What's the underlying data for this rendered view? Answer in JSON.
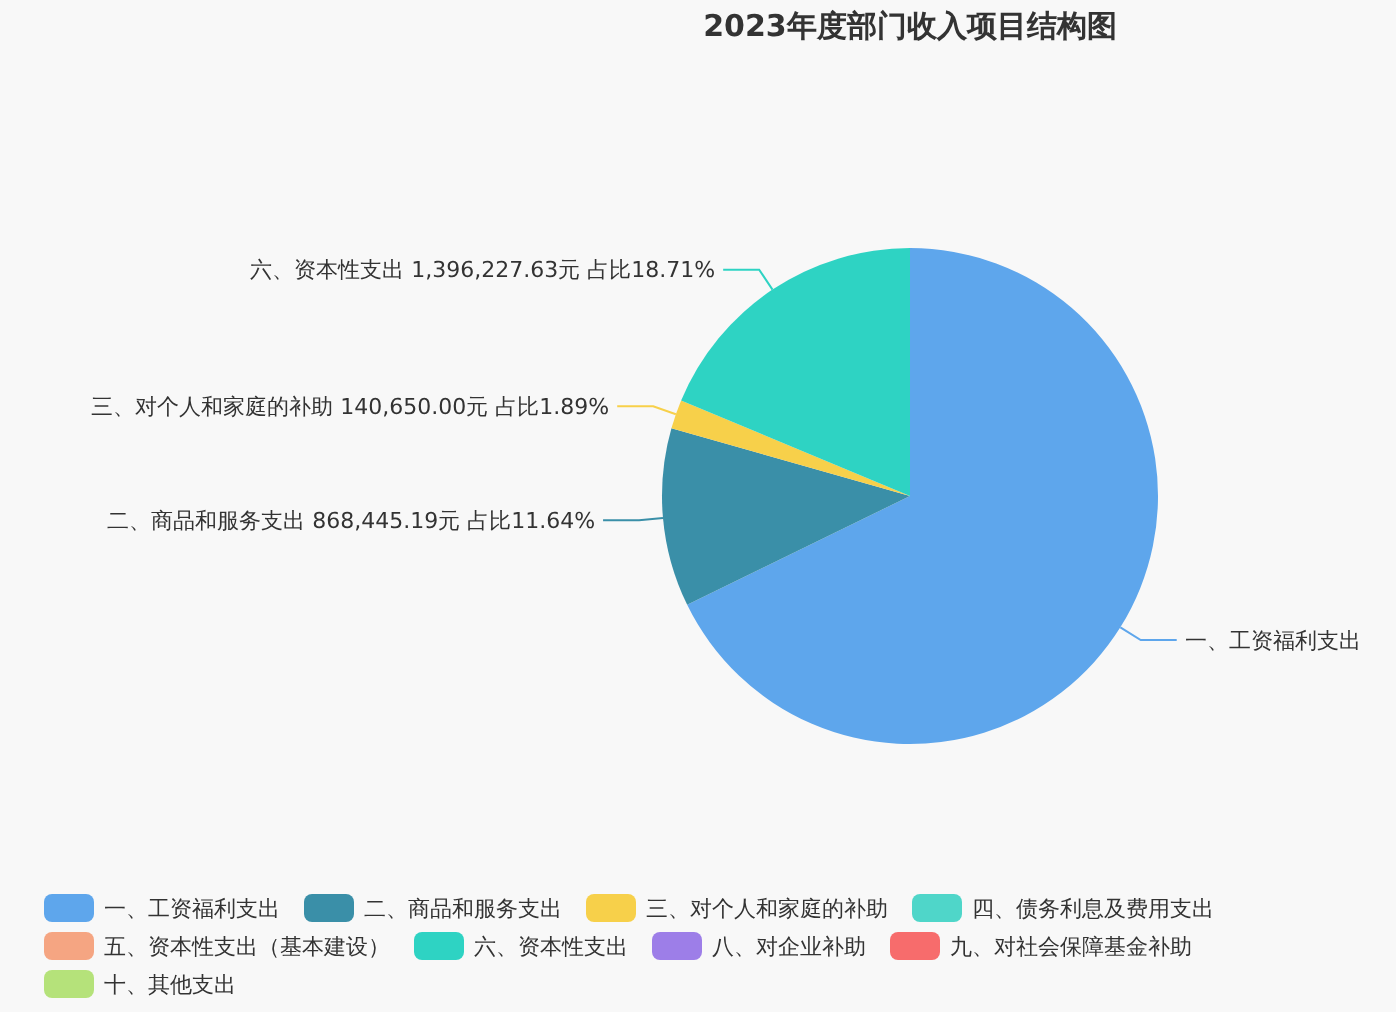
{
  "chart_data": {
    "type": "pie",
    "title": "2023年度部门收入项目结构图",
    "categories": [
      "一、工资福利支出",
      "二、商品和服务支出",
      "三、对个人和家庭的补助",
      "四、债务利息及费用支出",
      "五、资本性支出（基本建设）",
      "六、资本性支出",
      "八、对企业补助",
      "九、对社会保障基金补助",
      "十、其他支出"
    ],
    "values": [
      5057000,
      868445.19,
      140650,
      0,
      0,
      1396227.63,
      0,
      0,
      0
    ],
    "value_labels": [
      null,
      "868,445.19元 占比11.64%",
      "140,650.00元 占比1.89%",
      null,
      null,
      "1,396,227.63元 占比18.71%",
      null,
      null,
      null
    ],
    "colors": [
      "#5ea6ec",
      "#3a8fa8",
      "#f7d04a",
      "#4fd6c9",
      "#f5a582",
      "#2ed3c3",
      "#9d7ee8",
      "#f76c6c",
      "#b5e27a"
    ],
    "legend": "bottom"
  }
}
